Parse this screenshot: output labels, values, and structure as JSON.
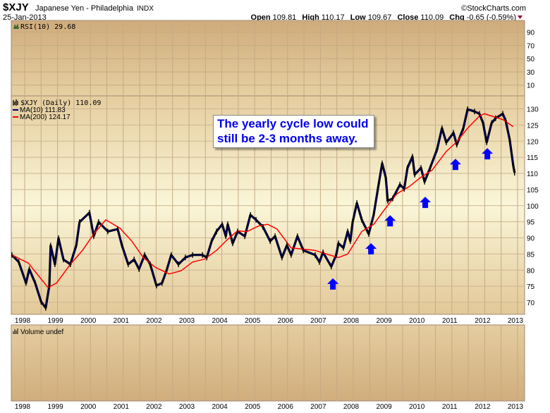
{
  "header": {
    "symbol": "$XJY",
    "name": "Japanese Yen - Philadelphia",
    "exchange": "INDX",
    "date": "25-Jan-2013",
    "copyright": "©StockCharts.com",
    "quote": {
      "open_label": "Open",
      "open": "109.81",
      "high_label": "High",
      "high": "110.17",
      "low_label": "Low",
      "low": "109.67",
      "close_label": "Close",
      "close": "110.09",
      "chg_label": "Chg",
      "chg": "-0.65 (-0.59%)"
    }
  },
  "colors": {
    "close": "#000000",
    "ma10": "#000080",
    "ma200": "#ff0000",
    "arrow": "#0000ff",
    "annotation": "#0000ee"
  },
  "annotation": {
    "line1": "The yearly cycle low could",
    "line2": "still be 2-3 months away."
  },
  "chart_data": [
    {
      "type": "line",
      "panel": "RSI",
      "title": "RSI(10) 29.68",
      "ylim": [
        0,
        100
      ],
      "yticks": [
        90,
        70,
        50,
        30,
        10
      ],
      "values": []
    },
    {
      "type": "line",
      "panel": "price",
      "title": "$XJY (Daily) 110.09",
      "legend": [
        "MA(10) 111.83",
        "MA(200) 124.17"
      ],
      "legend_position": "top-left",
      "ylim": [
        66,
        133
      ],
      "yticks": [
        130,
        125,
        120,
        115,
        110,
        105,
        100,
        95,
        90,
        85,
        80,
        75,
        70
      ],
      "xticks": [
        "1998",
        "1999",
        "2000",
        "2001",
        "2002",
        "2003",
        "2004",
        "2005",
        "2006",
        "2007",
        "2008",
        "2009",
        "2010",
        "2011",
        "2012",
        "2013"
      ],
      "xlim": [
        1997.6,
        2013.1
      ],
      "grid": true,
      "series": [
        {
          "name": "$XJY",
          "x": [
            1997.61,
            1997.82,
            1998.04,
            1998.14,
            1998.32,
            1998.5,
            1998.64,
            1998.75,
            1998.79,
            1998.92,
            1999.03,
            1999.18,
            1999.39,
            1999.57,
            1999.67,
            1999.97,
            2000.1,
            2000.25,
            2000.53,
            2000.83,
            2000.96,
            2001.15,
            2001.33,
            2001.48,
            2001.65,
            2001.82,
            2002.01,
            2002.18,
            2002.33,
            2002.46,
            2002.68,
            2002.89,
            2003.11,
            2003.41,
            2003.54,
            2003.69,
            2003.84,
            2004.01,
            2004.12,
            2004.18,
            2004.33,
            2004.48,
            2004.7,
            2004.87,
            2005.04,
            2005.25,
            2005.47,
            2005.62,
            2005.83,
            2005.98,
            2006.11,
            2006.3,
            2006.48,
            2006.84,
            2006.97,
            2007.08,
            2007.33,
            2007.48,
            2007.55,
            2007.7,
            2007.83,
            2007.91,
            2007.98,
            2008.11,
            2008.26,
            2008.47,
            2008.62,
            2008.77,
            2008.88,
            2008.99,
            2009.05,
            2009.2,
            2009.42,
            2009.55,
            2009.65,
            2009.8,
            2009.87,
            2010.06,
            2010.17,
            2010.34,
            2010.55,
            2010.7,
            2010.83,
            2011.05,
            2011.15,
            2011.35,
            2011.48,
            2011.69,
            2011.84,
            2011.95,
            2012.06,
            2012.21,
            2012.33,
            2012.55,
            2012.64,
            2012.76,
            2012.87,
            2012.91
          ],
          "values": [
            84.7,
            82.5,
            76,
            80.3,
            76,
            70.2,
            68.3,
            75.2,
            87.6,
            81.8,
            89.9,
            83.3,
            81.8,
            87.7,
            94.9,
            97.8,
            90.5,
            94.9,
            92,
            92.7,
            87.7,
            81.8,
            83.3,
            80.3,
            84.7,
            81.8,
            75.2,
            76,
            80.3,
            84.7,
            81.8,
            83.9,
            84.7,
            84.7,
            83.9,
            89,
            92,
            94.2,
            90.5,
            94.2,
            88.3,
            92,
            90.5,
            97.1,
            95.6,
            93.4,
            89,
            90.5,
            83.9,
            87.7,
            84.7,
            90.5,
            86.1,
            84.7,
            82.5,
            85.5,
            81.1,
            84.7,
            88.3,
            86.9,
            92,
            89,
            94.9,
            100.8,
            95.6,
            91.2,
            97.1,
            106.5,
            113.1,
            108.7,
            101.5,
            102.2,
            106.5,
            105.2,
            111.7,
            115.2,
            109.6,
            111.7,
            107.4,
            111.7,
            117.4,
            124,
            119.6,
            122.6,
            118.9,
            124,
            129.9,
            129.2,
            128.5,
            125.6,
            119.6,
            125.6,
            127.1,
            128.5,
            126.3,
            120.5,
            112.4,
            110.2
          ]
        },
        {
          "name": "MA(200)",
          "x": [
            1997.61,
            1998.11,
            1998.71,
            1998.97,
            1999.39,
            1999.76,
            2000.1,
            2000.47,
            2000.9,
            2001.26,
            2001.61,
            2001.97,
            2002.4,
            2002.76,
            2003.11,
            2003.47,
            2003.84,
            2004.12,
            2004.48,
            2004.76,
            2005.12,
            2005.4,
            2005.68,
            2006.11,
            2006.84,
            2007.27,
            2007.55,
            2007.83,
            2008.26,
            2008.62,
            2008.99,
            2009.33,
            2009.7,
            2010.06,
            2010.4,
            2010.83,
            2011.13,
            2011.48,
            2011.84,
            2011.99,
            2012.55,
            2012.87
          ],
          "values": [
            84.7,
            82.2,
            74.6,
            76,
            81.8,
            86.1,
            91.2,
            95.6,
            93,
            89,
            83.9,
            80.9,
            78.8,
            79.8,
            82.5,
            83.4,
            86.1,
            89,
            92.2,
            91.9,
            93.7,
            94.2,
            92.7,
            86.9,
            86.1,
            84.7,
            83.9,
            85,
            92,
            94.2,
            99.3,
            103.7,
            105.9,
            108.8,
            111,
            116.8,
            119.6,
            124,
            127.8,
            128.5,
            126.7,
            124.5
          ]
        }
      ],
      "annotations": {
        "up_arrows": [
          {
            "x": 2007.38,
            "y": 75.7
          },
          {
            "x": 2008.54,
            "y": 86.6
          },
          {
            "x": 2009.12,
            "y": 95.3
          },
          {
            "x": 2010.19,
            "y": 101
          },
          {
            "x": 2011.11,
            "y": 112.8
          },
          {
            "x": 2012.08,
            "y": 116.1
          }
        ]
      }
    },
    {
      "type": "bar",
      "panel": "volume",
      "title": "Volume undef",
      "values": []
    }
  ]
}
